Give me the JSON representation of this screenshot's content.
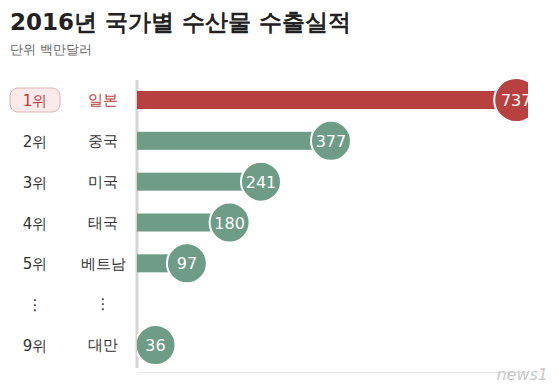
{
  "chart_data": {
    "type": "bar",
    "orientation": "horizontal",
    "title": "2016년 국가별 수산물 수출실적",
    "subtitle": "단위 백만달러",
    "ranks": [
      "1위",
      "2위",
      "3위",
      "4위",
      "5위",
      "⋮",
      "9위"
    ],
    "categories": [
      "일본",
      "중국",
      "미국",
      "태국",
      "베트남",
      "⋮",
      "대만"
    ],
    "values": [
      737,
      377,
      241,
      180,
      97,
      null,
      36
    ],
    "colors": [
      "#b8403f",
      "#6e9c87",
      "#6e9c87",
      "#6e9c87",
      "#6e9c87",
      null,
      "#6e9c87"
    ],
    "xlim": [
      0,
      760
    ],
    "xticks": [],
    "data_labels": true,
    "tick_labels": "y",
    "annotations": [
      "news1"
    ]
  }
}
